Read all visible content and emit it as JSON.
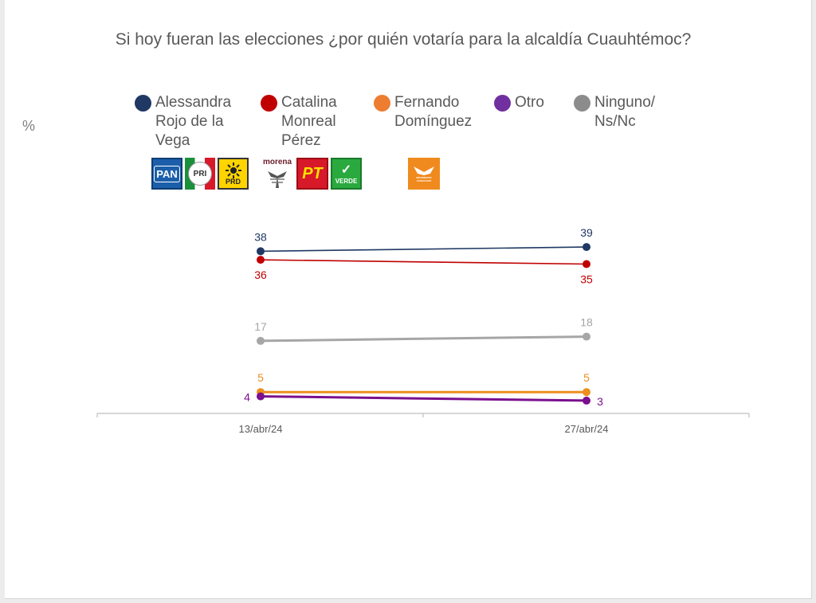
{
  "title": "Si hoy fueran las elecciones ¿por quién votaría para la alcaldía Cuauhtémoc?",
  "unit": "%",
  "legend": [
    {
      "lines": [
        "Alessandra",
        "Rojo de la",
        "Vega"
      ],
      "color": "#1f3864"
    },
    {
      "lines": [
        "Catalina",
        "Monreal",
        "Pérez"
      ],
      "color": "#c00000"
    },
    {
      "lines": [
        "Fernando",
        "Domínguez"
      ],
      "color": "#ed7d31"
    },
    {
      "lines": [
        "Otro"
      ],
      "color": "#7030a0"
    },
    {
      "lines": [
        "Ninguno/",
        "Ns/Nc"
      ],
      "color": "#8c8c8c"
    }
  ],
  "logos": {
    "pan": "PAN",
    "pri": "PRI",
    "prd": "PRD",
    "morena": "morena",
    "pt": "PT",
    "verde": "VERDE",
    "mc": "MOVIMIENTO CIUDADANO"
  },
  "chart_data": {
    "type": "line",
    "x": [
      "13/abr/24",
      "27/abr/24"
    ],
    "ylim": [
      0,
      42
    ],
    "series": [
      {
        "name": "Alessandra Rojo de la Vega",
        "values": [
          38,
          39
        ],
        "color": "#1f3864"
      },
      {
        "name": "Catalina Monreal Pérez",
        "values": [
          36,
          35
        ],
        "color": "#c00000"
      },
      {
        "name": "Ninguno/ Ns/Nc",
        "values": [
          17,
          18
        ],
        "color": "#a6a6a6"
      },
      {
        "name": "Fernando Domínguez",
        "values": [
          5,
          5
        ],
        "color": "#ed8e1e"
      },
      {
        "name": "Otro",
        "values": [
          4,
          3
        ],
        "color": "#7b0f8e"
      }
    ]
  }
}
